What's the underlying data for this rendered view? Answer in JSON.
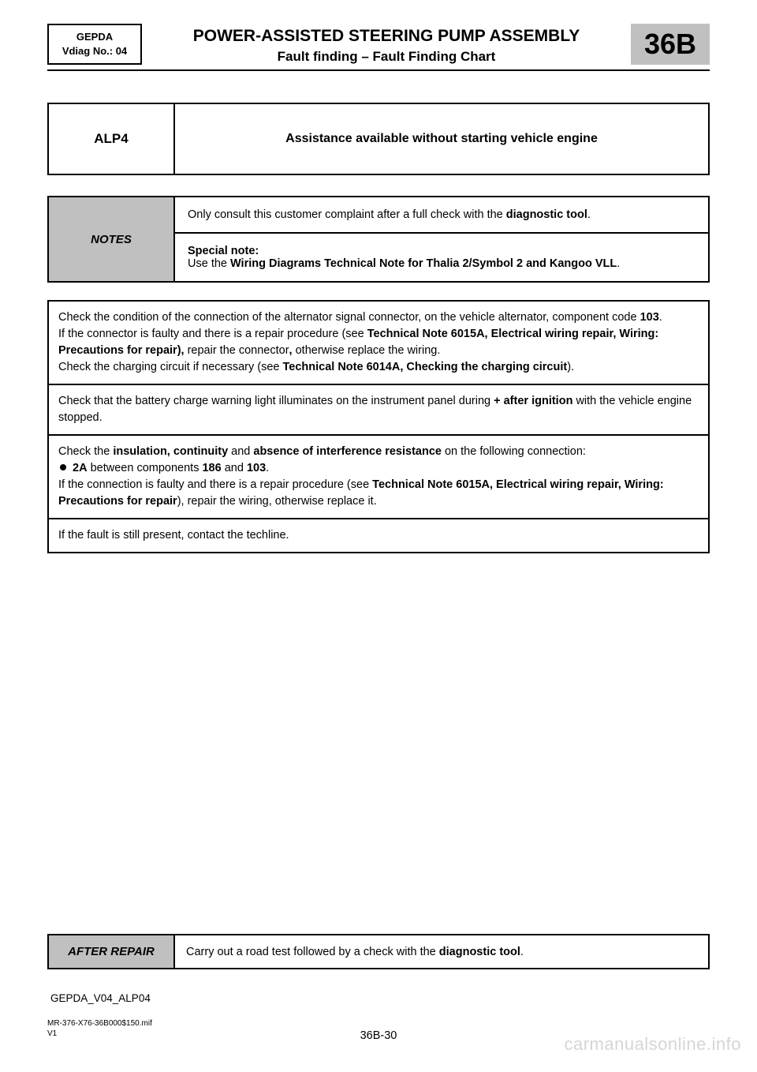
{
  "header": {
    "left_line1": "GEPDA",
    "left_line2": "Vdiag No.: 04",
    "title": "POWER-ASSISTED STEERING PUMP ASSEMBLY",
    "subtitle": "Fault finding – Fault Finding Chart",
    "code": "36B"
  },
  "alp": {
    "code": "ALP4",
    "desc": "Assistance available without starting vehicle engine"
  },
  "notes": {
    "label": "NOTES",
    "line1_pre": "Only consult this customer complaint after a full check with the ",
    "line1_bold": "diagnostic tool",
    "line1_post": ".",
    "special_label": "Special note:",
    "special_pre": "Use the ",
    "special_bold": "Wiring Diagrams Technical Note for Thalia 2/Symbol 2 and Kangoo VLL",
    "special_post": "."
  },
  "checks": {
    "c1_a": "Check the condition of the connection of the alternator signal connector, on the vehicle alternator, component code ",
    "c1_b": "103",
    "c1_c": ".",
    "c1_d": "If the connector is faulty and there is a repair procedure (see ",
    "c1_e": "Technical Note 6015A, Electrical wiring repair, Wiring: Precautions for repair",
    "c1_f": "),",
    "c1_g": " repair the connector",
    "c1_h": ",",
    "c1_i": " otherwise replace the wiring.",
    "c1_j": "Check the charging circuit if necessary (see ",
    "c1_k": "Technical Note 6014A, Checking the charging circuit",
    "c1_l": ").",
    "c2_a": "Check that the battery charge warning light illuminates on the instrument panel during ",
    "c2_b": "+ after ignition",
    "c2_c": " with the vehicle engine stopped.",
    "c3_a": "Check the ",
    "c3_b": "insulation, continuity",
    "c3_c": " and ",
    "c3_d": "absence of interference resistance",
    "c3_e": " on the following connection:",
    "c3_f": "2A",
    "c3_g": " between components ",
    "c3_h": "186",
    "c3_i": " and ",
    "c3_j": "103",
    "c3_k": ".",
    "c3_l": "If the connection is faulty and there is a repair procedure (see ",
    "c3_m": "Technical Note 6015A, Electrical wiring repair, Wiring: Precautions for repair",
    "c3_n": "), repair the wiring, otherwise replace it.",
    "c4": "If the fault is still present, contact the techline."
  },
  "after": {
    "label": "AFTER REPAIR",
    "text_pre": "Carry out a road test followed by a check with the ",
    "text_bold": "diagnostic tool",
    "text_post": "."
  },
  "footer": {
    "code": "GEPDA_V04_ALP04",
    "ref1": "MR-376-X76-36B000$150.mif",
    "ref2": "V1",
    "page": "36B-30",
    "watermark": "carmanualsonline.info"
  }
}
